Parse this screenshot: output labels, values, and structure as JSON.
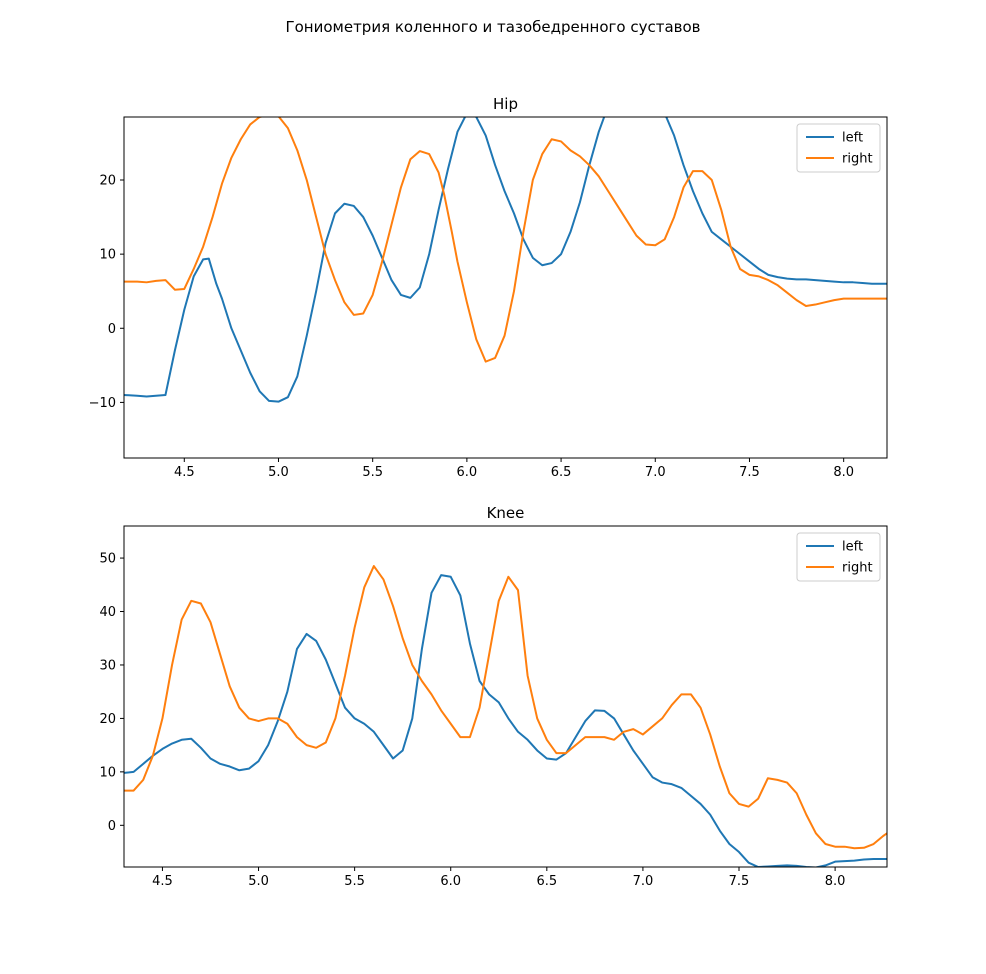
{
  "figure": {
    "suptitle": "Гониометрия коленного и тазобедренного суставов"
  },
  "colors": {
    "left": "#1f77b4",
    "right": "#ff7f0e"
  },
  "chart_data": [
    {
      "type": "line",
      "title": "Hip",
      "xlabel": "",
      "ylabel": "",
      "xlim": [
        4.18,
        8.23
      ],
      "ylim": [
        -17.5,
        28.5
      ],
      "xticks": [
        4.5,
        5.0,
        5.5,
        6.0,
        6.5,
        7.0,
        7.5,
        8.0
      ],
      "xtick_labels": [
        "4.5",
        "5.0",
        "5.5",
        "6.0",
        "6.5",
        "7.0",
        "7.5",
        "8.0"
      ],
      "yticks": [
        -10,
        0,
        10,
        20
      ],
      "ytick_labels": [
        "−10",
        "0",
        "10",
        "20"
      ],
      "grid": false,
      "legend": "upper right",
      "series": [
        {
          "name": "left",
          "color": "#1f77b4",
          "x": [
            4.18,
            4.25,
            4.3,
            4.35,
            4.4,
            4.45,
            4.5,
            4.55,
            4.6,
            4.63,
            4.67,
            4.7,
            4.75,
            4.8,
            4.85,
            4.9,
            4.95,
            5.0,
            5.05,
            5.1,
            5.15,
            5.2,
            5.25,
            5.3,
            5.35,
            5.4,
            5.45,
            5.5,
            5.55,
            5.6,
            5.65,
            5.7,
            5.75,
            5.8,
            5.85,
            5.9,
            5.95,
            6.0,
            6.05,
            6.1,
            6.15,
            6.2,
            6.25,
            6.3,
            6.35,
            6.4,
            6.45,
            6.5,
            6.55,
            6.6,
            6.65,
            6.7,
            6.75,
            6.8,
            6.85,
            6.9,
            6.95,
            7.0,
            7.05,
            7.1,
            7.15,
            7.2,
            7.25,
            7.3,
            7.35,
            7.4,
            7.45,
            7.5,
            7.55,
            7.6,
            7.65,
            7.7,
            7.75,
            7.8,
            7.85,
            7.9,
            7.95,
            8.0,
            8.05,
            8.1,
            8.15,
            8.23
          ],
          "y": [
            -9,
            -9.1,
            -9.2,
            -9.1,
            -9.0,
            -3,
            2.5,
            7.0,
            9.3,
            9.4,
            6,
            4,
            0,
            -3,
            -6,
            -8.5,
            -9.8,
            -9.9,
            -9.3,
            -6.5,
            -1,
            5,
            11.5,
            15.5,
            16.8,
            16.5,
            15,
            12.5,
            9.5,
            6.5,
            4.5,
            4.1,
            5.5,
            10,
            16,
            21.5,
            26.5,
            29,
            28.5,
            26,
            22,
            18.5,
            15.5,
            12,
            9.5,
            8.5,
            8.8,
            10,
            13,
            17,
            22,
            26.5,
            30,
            31.5,
            31.8,
            31.7,
            31.3,
            30.5,
            29,
            26,
            22,
            18.5,
            15.5,
            13,
            12,
            11,
            10,
            9,
            8,
            7.2,
            6.9,
            6.7,
            6.6,
            6.6,
            6.5,
            6.4,
            6.3,
            6.2,
            6.2,
            6.1,
            6.0,
            6.0
          ]
        },
        {
          "name": "right",
          "color": "#ff7f0e",
          "x": [
            4.18,
            4.25,
            4.3,
            4.35,
            4.4,
            4.45,
            4.5,
            4.55,
            4.6,
            4.65,
            4.7,
            4.75,
            4.8,
            4.85,
            4.9,
            4.95,
            5.0,
            5.05,
            5.1,
            5.15,
            5.2,
            5.25,
            5.3,
            5.35,
            5.4,
            5.45,
            5.5,
            5.55,
            5.6,
            5.65,
            5.7,
            5.75,
            5.8,
            5.85,
            5.88,
            5.92,
            5.95,
            6.0,
            6.05,
            6.1,
            6.15,
            6.2,
            6.25,
            6.3,
            6.35,
            6.4,
            6.45,
            6.5,
            6.55,
            6.6,
            6.65,
            6.7,
            6.75,
            6.8,
            6.85,
            6.9,
            6.95,
            7.0,
            7.05,
            7.1,
            7.15,
            7.2,
            7.25,
            7.3,
            7.35,
            7.4,
            7.45,
            7.5,
            7.55,
            7.6,
            7.65,
            7.7,
            7.75,
            7.8,
            7.85,
            7.9,
            7.95,
            8.0,
            8.05,
            8.1,
            8.15,
            8.23
          ],
          "y": [
            6.3,
            6.3,
            6.2,
            6.4,
            6.5,
            5.2,
            5.3,
            8,
            11,
            15,
            19.5,
            23,
            25.5,
            27.5,
            28.5,
            28.8,
            28.6,
            27,
            24,
            20,
            15,
            10,
            6.5,
            3.5,
            1.8,
            2.0,
            4.5,
            9,
            14,
            19,
            22.8,
            23.9,
            23.5,
            21,
            18,
            13,
            9,
            3.5,
            -1.5,
            -4.5,
            -4.0,
            -1,
            5,
            13,
            20,
            23.5,
            25.5,
            25.2,
            24,
            23.2,
            22,
            20.5,
            18.5,
            16.5,
            14.5,
            12.5,
            11.3,
            11.2,
            12,
            15,
            19,
            21.2,
            21.2,
            20,
            16,
            11,
            8,
            7.2,
            7,
            6.5,
            5.8,
            4.8,
            3.8,
            3.0,
            3.2,
            3.5,
            3.8,
            4.0,
            4.0,
            4.0,
            4.0,
            4.0
          ]
        }
      ]
    },
    {
      "type": "line",
      "title": "Knee",
      "xlabel": "",
      "ylabel": "",
      "xlim": [
        4.3,
        8.27
      ],
      "ylim": [
        -7.8,
        56
      ],
      "xticks": [
        4.5,
        5.0,
        5.5,
        6.0,
        6.5,
        7.0,
        7.5,
        8.0
      ],
      "xtick_labels": [
        "4.5",
        "5.0",
        "5.5",
        "6.0",
        "6.5",
        "7.0",
        "7.5",
        "8.0"
      ],
      "yticks": [
        0,
        10,
        20,
        30,
        40,
        50
      ],
      "ytick_labels": [
        "0",
        "10",
        "20",
        "30",
        "40",
        "50"
      ],
      "grid": false,
      "legend": "upper right",
      "series": [
        {
          "name": "left",
          "color": "#1f77b4",
          "x": [
            4.3,
            4.35,
            4.4,
            4.45,
            4.5,
            4.55,
            4.6,
            4.65,
            4.7,
            4.75,
            4.8,
            4.85,
            4.9,
            4.95,
            5.0,
            5.05,
            5.1,
            5.15,
            5.2,
            5.25,
            5.3,
            5.35,
            5.4,
            5.45,
            5.5,
            5.55,
            5.6,
            5.65,
            5.7,
            5.75,
            5.8,
            5.85,
            5.9,
            5.95,
            6.0,
            6.05,
            6.1,
            6.15,
            6.2,
            6.25,
            6.3,
            6.35,
            6.4,
            6.45,
            6.5,
            6.55,
            6.6,
            6.65,
            6.7,
            6.75,
            6.8,
            6.85,
            6.9,
            6.95,
            7.0,
            7.05,
            7.1,
            7.15,
            7.2,
            7.25,
            7.3,
            7.35,
            7.4,
            7.45,
            7.5,
            7.55,
            7.6,
            7.65,
            7.7,
            7.75,
            7.8,
            7.85,
            7.9,
            7.95,
            8.0,
            8.05,
            8.1,
            8.15,
            8.2,
            8.27
          ],
          "y": [
            9.8,
            10,
            11.5,
            13,
            14.3,
            15.3,
            16.0,
            16.2,
            14.5,
            12.5,
            11.5,
            11.0,
            10.3,
            10.6,
            12.0,
            15.0,
            19.5,
            25,
            33,
            35.8,
            34.5,
            31,
            26.5,
            22,
            20,
            19,
            17.5,
            15,
            12.5,
            14,
            20,
            33,
            43.5,
            46.8,
            46.5,
            43,
            34,
            27,
            24.5,
            23,
            20,
            17.5,
            16,
            14,
            12.5,
            12.3,
            13.5,
            16.5,
            19.5,
            21.5,
            21.4,
            20,
            17,
            14,
            11.5,
            9,
            8,
            7.7,
            7.0,
            5.5,
            4,
            2,
            -1,
            -3.5,
            -5,
            -7,
            -7.8,
            -7.7,
            -7.6,
            -7.5,
            -7.6,
            -7.8,
            -7.9,
            -7.5,
            -6.8,
            -6.7,
            -6.6,
            -6.4,
            -6.3,
            -6.3
          ]
        },
        {
          "name": "right",
          "color": "#ff7f0e",
          "x": [
            4.3,
            4.35,
            4.4,
            4.45,
            4.5,
            4.55,
            4.6,
            4.65,
            4.7,
            4.75,
            4.8,
            4.85,
            4.9,
            4.95,
            5.0,
            5.05,
            5.1,
            5.15,
            5.2,
            5.25,
            5.3,
            5.35,
            5.4,
            5.45,
            5.5,
            5.55,
            5.6,
            5.65,
            5.7,
            5.75,
            5.8,
            5.85,
            5.9,
            5.95,
            6.0,
            6.05,
            6.1,
            6.15,
            6.2,
            6.25,
            6.3,
            6.35,
            6.4,
            6.45,
            6.5,
            6.55,
            6.6,
            6.65,
            6.7,
            6.75,
            6.8,
            6.85,
            6.9,
            6.95,
            7.0,
            7.05,
            7.1,
            7.15,
            7.2,
            7.25,
            7.3,
            7.35,
            7.4,
            7.45,
            7.5,
            7.55,
            7.6,
            7.65,
            7.7,
            7.75,
            7.8,
            7.85,
            7.9,
            7.95,
            8.0,
            8.05,
            8.1,
            8.15,
            8.2,
            8.25,
            8.27
          ],
          "y": [
            6.5,
            6.5,
            8.5,
            13,
            20,
            30,
            38.5,
            42,
            41.5,
            38,
            32,
            26,
            22,
            20,
            19.5,
            20,
            20,
            19,
            16.5,
            15,
            14.5,
            15.5,
            20,
            28,
            37,
            44.5,
            48.5,
            46,
            41,
            35,
            30,
            27,
            24.5,
            21.5,
            19,
            16.5,
            16.5,
            22,
            32,
            42,
            46.5,
            44,
            28,
            20,
            16,
            13.5,
            13.5,
            15,
            16.5,
            16.5,
            16.5,
            16.0,
            17.5,
            18,
            17,
            18.5,
            20,
            22.5,
            24.5,
            24.5,
            22,
            17,
            11,
            6,
            4,
            3.5,
            5,
            8.8,
            8.5,
            8,
            6,
            2,
            -1.5,
            -3.5,
            -4,
            -4,
            -4.3,
            -4.2,
            -3.5,
            -2,
            -1.5
          ]
        }
      ]
    }
  ]
}
